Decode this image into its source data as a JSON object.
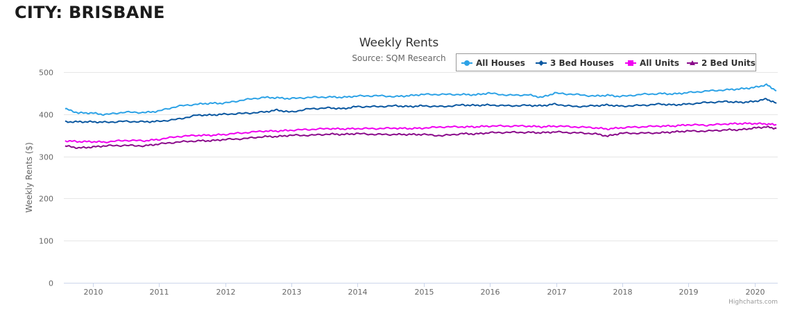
{
  "page": {
    "heading": "CITY: BRISBANE"
  },
  "chart_data": {
    "type": "line",
    "title": "Weekly Rents",
    "subtitle": "Source: SQM Research",
    "xlabel": "",
    "ylabel": "Weekly Rents ($)",
    "xlim": [
      2009.58,
      2020.37
    ],
    "ylim": [
      0,
      500
    ],
    "y_ticks": [
      "0",
      "100",
      "200",
      "300",
      "400",
      "500"
    ],
    "x_ticks": [
      "2010",
      "2011",
      "2012",
      "2013",
      "2014",
      "2015",
      "2016",
      "2017",
      "2018",
      "2019",
      "2020"
    ],
    "grid": true,
    "legend_position": "top-right",
    "credits": "Highcharts.com",
    "x": [
      2009.6,
      2009.8,
      2010.0,
      2010.2,
      2010.5,
      2010.8,
      2011.0,
      2011.3,
      2011.6,
      2011.8,
      2012.0,
      2012.3,
      2012.6,
      2012.8,
      2013.0,
      2013.3,
      2013.6,
      2013.8,
      2014.0,
      2014.3,
      2014.6,
      2014.8,
      2015.0,
      2015.3,
      2015.6,
      2015.8,
      2016.0,
      2016.3,
      2016.6,
      2016.8,
      2017.0,
      2017.3,
      2017.6,
      2017.8,
      2018.0,
      2018.3,
      2018.6,
      2018.8,
      2019.0,
      2019.3,
      2019.6,
      2019.8,
      2020.0,
      2020.2,
      2020.35
    ],
    "series": [
      {
        "name": "All Houses",
        "color": "#2ca2e6",
        "marker": "circle",
        "values": [
          413,
          403,
          403,
          399,
          405,
          404,
          407,
          419,
          424,
          426,
          426,
          434,
          440,
          439,
          437,
          440,
          441,
          440,
          443,
          444,
          442,
          444,
          447,
          447,
          447,
          446,
          450,
          445,
          446,
          440,
          450,
          447,
          443,
          445,
          442,
          447,
          449,
          448,
          451,
          455,
          458,
          460,
          463,
          470,
          456
        ]
      },
      {
        "name": "3 Bed Houses",
        "color": "#0a57a0",
        "marker": "diamond",
        "values": [
          382,
          382,
          382,
          381,
          383,
          382,
          383,
          388,
          398,
          398,
          400,
          402,
          405,
          410,
          405,
          413,
          415,
          413,
          418,
          418,
          420,
          418,
          420,
          418,
          422,
          421,
          422,
          420,
          421,
          420,
          424,
          418,
          420,
          422,
          419,
          421,
          424,
          422,
          424,
          428,
          430,
          428,
          430,
          436,
          426
        ]
      },
      {
        "name": "All Units",
        "color": "#f000f0",
        "marker": "square",
        "values": [
          337,
          335,
          335,
          334,
          338,
          337,
          340,
          347,
          350,
          350,
          352,
          356,
          360,
          360,
          362,
          364,
          366,
          365,
          366,
          366,
          367,
          366,
          367,
          370,
          370,
          370,
          372,
          372,
          372,
          370,
          372,
          370,
          368,
          365,
          368,
          370,
          372,
          372,
          375,
          374,
          377,
          378,
          378,
          377,
          375
        ]
      },
      {
        "name": "2 Bed Units",
        "color": "#8a0a8a",
        "marker": "triangle",
        "values": [
          325,
          320,
          322,
          325,
          326,
          325,
          329,
          334,
          337,
          337,
          340,
          342,
          347,
          347,
          350,
          350,
          353,
          352,
          354,
          352,
          352,
          352,
          352,
          349,
          354,
          353,
          356,
          357,
          357,
          356,
          358,
          356,
          354,
          348,
          355,
          355,
          356,
          358,
          360,
          360,
          363,
          363,
          367,
          370,
          366
        ]
      }
    ]
  }
}
